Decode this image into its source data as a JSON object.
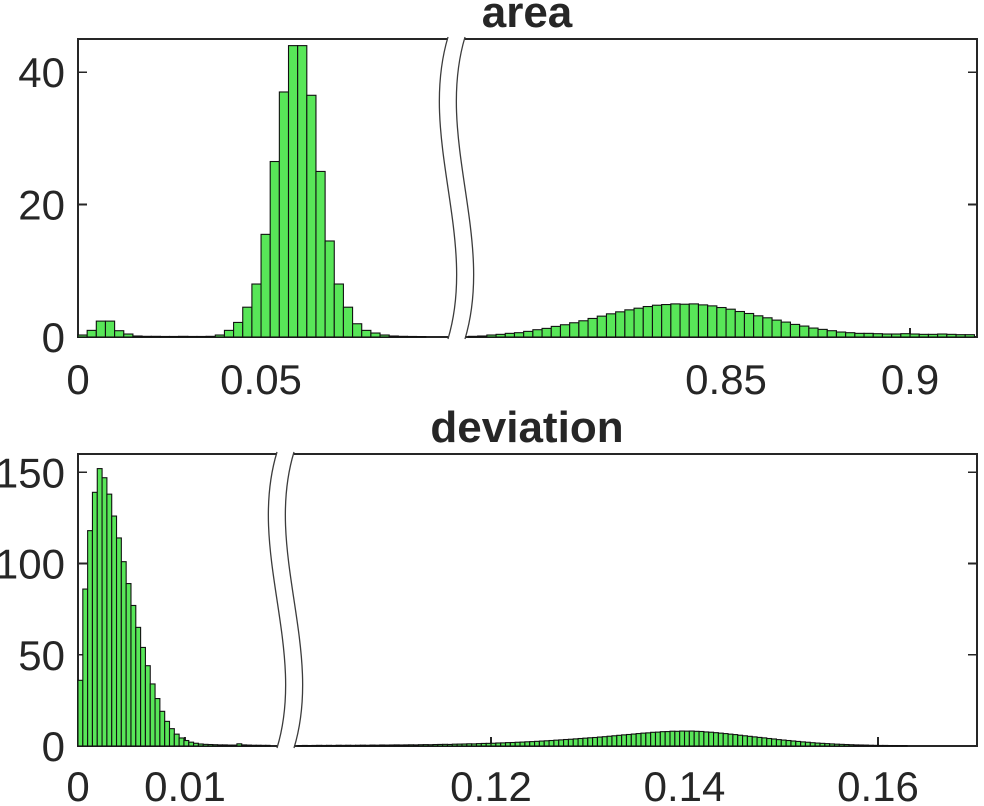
{
  "figure": {
    "background": "#ffffff",
    "colors": {
      "bar_fill": "#58e658",
      "bar_edge": "#111111",
      "axis": "#262626",
      "text": "#262626",
      "break_line": "#3c3c3c"
    }
  },
  "chart_data": [
    {
      "type": "bar",
      "title": "area",
      "xlabel": "",
      "ylabel": "",
      "grid": false,
      "broken_x_axis": true,
      "legend": null,
      "ylim": [
        0,
        45
      ],
      "yticks": [
        {
          "value": 0,
          "label": "0"
        },
        {
          "value": 20,
          "label": "20"
        },
        {
          "value": 40,
          "label": "40"
        }
      ],
      "segments": [
        {
          "xlim": [
            0,
            0.0997
          ],
          "xticks": [
            {
              "value": 0,
              "label": "0"
            },
            {
              "value": 0.05,
              "label": "0.05"
            }
          ],
          "bins": {
            "start": 0,
            "width": 0.0025,
            "heights": [
              0.3,
              1.0,
              2.4,
              2.4,
              0.95,
              0.45,
              0.15,
              0.1,
              0.1,
              0.08,
              0.08,
              0.1,
              0.08,
              0.08,
              0.1,
              0.3,
              1.0,
              2.2,
              4.5,
              8,
              15.5,
              26.5,
              37,
              44,
              44,
              36.5,
              25,
              14.5,
              8,
              4.5,
              2,
              1,
              0.6,
              0.3,
              0.15,
              0.1,
              0.08,
              0.06,
              0.05,
              0.05
            ]
          }
        },
        {
          "xlim": [
            0.7796,
            0.9182
          ],
          "xticks": [
            {
              "value": 0.85,
              "label": "0.85"
            },
            {
              "value": 0.9,
              "label": "0.9"
            }
          ],
          "bins": {
            "start": 0.78,
            "width": 0.0025,
            "heights": [
              0.1,
              0.15,
              0.3,
              0.4,
              0.55,
              0.65,
              0.85,
              1.1,
              1.3,
              1.6,
              1.85,
              2.15,
              2.45,
              2.8,
              3.15,
              3.5,
              3.8,
              4.1,
              4.35,
              4.6,
              4.8,
              4.9,
              5.0,
              4.95,
              5.0,
              4.85,
              4.7,
              4.45,
              4.2,
              3.85,
              3.55,
              3.2,
              2.9,
              2.55,
              2.25,
              1.9,
              1.65,
              1.35,
              1.15,
              0.95,
              0.75,
              0.65,
              0.55,
              0.55,
              0.5,
              0.45,
              0.45,
              0.5,
              0.45,
              0.4,
              0.4,
              0.45,
              0.4,
              0.35,
              0.35
            ]
          }
        }
      ]
    },
    {
      "type": "bar",
      "title": "deviation",
      "xlabel": "",
      "ylabel": "",
      "grid": false,
      "broken_x_axis": true,
      "legend": null,
      "ylim": [
        0,
        160
      ],
      "yticks": [
        {
          "value": 0,
          "label": "0"
        },
        {
          "value": 50,
          "label": "50"
        },
        {
          "value": 100,
          "label": "100"
        },
        {
          "value": 150,
          "label": "150"
        }
      ],
      "segments": [
        {
          "xlim": [
            0,
            0.01794
          ],
          "xticks": [
            {
              "value": 0,
              "label": "0"
            },
            {
              "value": 0.01,
              "label": "0.01"
            }
          ],
          "bins": {
            "start": 0,
            "width": 0.00045,
            "heights": [
              36,
              86,
              118,
              139,
              152,
              147,
              138,
              126,
              114,
              101,
              89,
              77,
              65,
              54,
              44,
              34,
              26,
              19,
              13.5,
              9.5,
              6.5,
              4.4,
              3,
              2.1,
              1.5,
              1.1,
              0.9,
              0.8,
              0.7,
              0.6,
              0.6,
              0.5,
              0.5,
              1.2,
              0.6,
              0.5,
              0.4,
              0.4,
              0.35,
              0.35
            ]
          }
        },
        {
          "xlim": [
            0.10005,
            0.17023
          ],
          "xticks": [
            {
              "value": 0.12,
              "label": "0.12"
            },
            {
              "value": 0.14,
              "label": "0.14"
            },
            {
              "value": 0.16,
              "label": "0.16"
            }
          ],
          "bins": {
            "start": 0.1,
            "width": 0.0005,
            "heights": [
              0.2,
              0.3,
              0.25,
              0.3,
              0.35,
              0.3,
              0.35,
              0.3,
              0.4,
              0.35,
              0.4,
              0.35,
              0.4,
              0.45,
              0.4,
              0.5,
              0.45,
              0.55,
              0.5,
              0.55,
              0.6,
              0.55,
              0.6,
              0.65,
              0.6,
              0.7,
              0.75,
              0.7,
              0.8,
              0.85,
              0.9,
              0.85,
              1.0,
              1.05,
              1.1,
              1.2,
              1.15,
              1.3,
              1.4,
              1.45,
              1.5,
              1.65,
              1.7,
              1.85,
              1.9,
              2.05,
              2.15,
              2.3,
              2.4,
              2.55,
              2.7,
              2.85,
              3.0,
              3.2,
              3.35,
              3.55,
              3.7,
              3.9,
              4.1,
              4.3,
              4.5,
              4.65,
              4.9,
              5.1,
              5.35,
              5.6,
              5.85,
              6.1,
              6.3,
              6.55,
              6.8,
              7.05,
              7.2,
              7.5,
              7.6,
              7.85,
              7.9,
              8.1,
              8.05,
              8.2,
              8.15,
              8.2,
              8.05,
              7.95,
              7.7,
              7.55,
              7.3,
              7.05,
              6.8,
              6.5,
              6.25,
              5.9,
              5.6,
              5.3,
              5.0,
              4.7,
              4.45,
              4.1,
              3.85,
              3.5,
              3.25,
              3.0,
              2.75,
              2.5,
              2.25,
              2.05,
              1.8,
              1.6,
              1.45,
              1.3,
              1.15,
              1.0,
              0.9,
              0.8,
              0.7,
              0.6,
              0.55,
              0.5,
              0.4,
              0.35,
              0.3,
              0.3,
              0.25,
              0.25,
              0.2,
              0.2,
              0.15,
              0.15,
              0.12,
              0.1,
              0.1,
              0.1,
              0.08,
              0.08,
              0.06,
              0.06,
              0.05,
              0.05,
              0.04,
              0.04
            ]
          }
        }
      ]
    }
  ]
}
